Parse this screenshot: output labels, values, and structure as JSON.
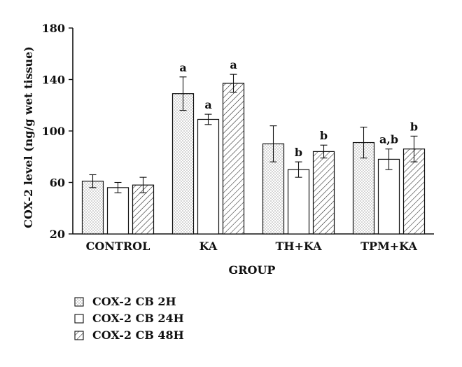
{
  "chart_data": {
    "type": "bar",
    "title": "",
    "xlabel": "GROUP",
    "ylabel": "COX-2 level (ng/g wet tissue)",
    "ylim": [
      20,
      180
    ],
    "yticks": [
      "20",
      "60",
      "100",
      "140",
      "180"
    ],
    "categories": [
      "CONTROL",
      "KA",
      "TH+KA",
      "TPM+KA"
    ],
    "series": [
      {
        "name": "COX-2 CB 2H",
        "pattern": "dots",
        "values": [
          61,
          129,
          90,
          91
        ],
        "errors": [
          5,
          13,
          14,
          12
        ],
        "labels": [
          "",
          "a",
          "",
          ""
        ]
      },
      {
        "name": "COX-2 CB 24H",
        "pattern": "open",
        "values": [
          56,
          109,
          70,
          78
        ],
        "errors": [
          4,
          4,
          6,
          8
        ],
        "labels": [
          "",
          "a",
          "b",
          "a,b"
        ]
      },
      {
        "name": "COX-2 CB 48H",
        "pattern": "hatch",
        "values": [
          58,
          137,
          84,
          86
        ],
        "errors": [
          6,
          7,
          5,
          10
        ],
        "labels": [
          "",
          "a",
          "b",
          "b"
        ]
      }
    ],
    "grid": false,
    "legend_position": "bottom-left"
  }
}
